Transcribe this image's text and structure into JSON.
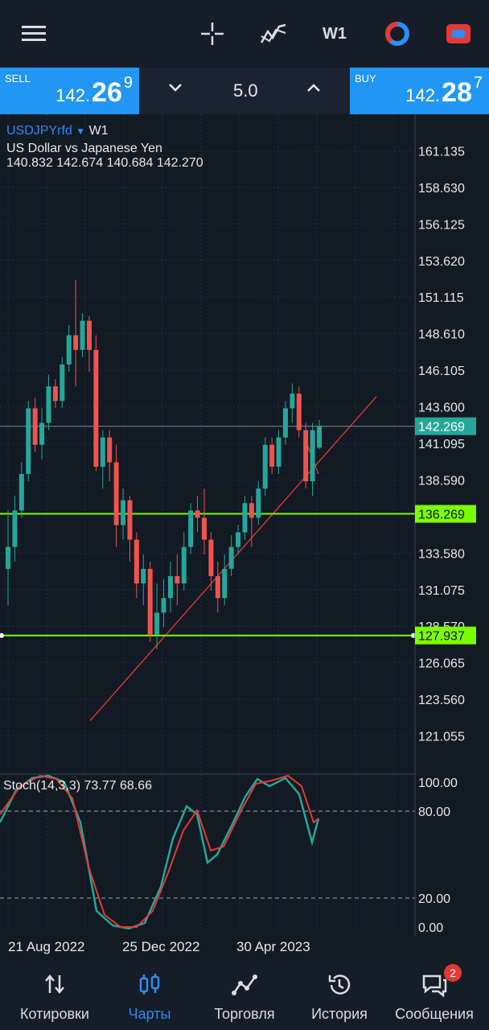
{
  "toolbar": {
    "timeframe": "W1",
    "icons": [
      "menu-icon",
      "crosshair-icon",
      "indicators-icon",
      "timeframe",
      "color-wheel-icon",
      "trade-toggle-icon"
    ]
  },
  "trade": {
    "sell": {
      "label": "SELL",
      "price_main": "142.",
      "price_big": "26",
      "price_sup": "9"
    },
    "buy": {
      "label": "BUY",
      "price_main": "142.",
      "price_big": "28",
      "price_sup": "7"
    },
    "volume": "5.0"
  },
  "chart": {
    "symbol": "USDJPYrfd",
    "timeframe": "W1",
    "description": "US Dollar vs Japanese Yen",
    "ohlc": "140.832 142.674 140.684 142.270",
    "price_levels": [
      "161.135",
      "158.630",
      "156.125",
      "153.620",
      "151.115",
      "148.610",
      "146.105",
      "143.600",
      "141.095",
      "138.590",
      "133.580",
      "131.075",
      "128.570",
      "126.065",
      "123.560",
      "121.055"
    ],
    "current_price_tag": "142.269",
    "level_tag_1": "136.269",
    "level_tag_2": "127.937",
    "stoch_label": "Stoch(14,3,3) 73.77 68.66",
    "stoch_levels": [
      "100.00",
      "80.00",
      "20.00",
      "0.00"
    ],
    "dates": [
      "21 Aug 2022",
      "25 Dec 2022",
      "30 Apr 2023"
    ],
    "colors": {
      "bull": "#26a69a",
      "bear": "#ef5350",
      "hline": "#7cfc00",
      "trend": "#e53935"
    }
  },
  "chart_data": {
    "type": "candlestick",
    "ylim": [
      118.55,
      163.64
    ],
    "candles": [
      [
        132.5,
        134.0,
        130.0,
        136.5
      ],
      [
        134.0,
        136.5,
        133.0,
        137.5
      ],
      [
        136.5,
        139.0,
        136.0,
        139.8
      ],
      [
        139.0,
        143.5,
        138.5,
        144.0
      ],
      [
        143.5,
        141.0,
        140.5,
        144.2
      ],
      [
        141.0,
        142.5,
        140.0,
        143.5
      ],
      [
        142.5,
        145.0,
        142.0,
        145.8
      ],
      [
        145.0,
        144.0,
        143.5,
        145.5
      ],
      [
        144.0,
        146.5,
        143.5,
        147.0
      ],
      [
        146.5,
        148.5,
        146.0,
        149.2
      ],
      [
        148.5,
        147.5,
        145.0,
        152.3
      ],
      [
        147.5,
        149.5,
        147.0,
        150.0
      ],
      [
        149.5,
        147.5,
        146.0,
        149.8
      ],
      [
        147.5,
        139.5,
        139.2,
        148.5
      ],
      [
        139.5,
        141.5,
        138.0,
        142.0
      ],
      [
        141.5,
        139.8,
        138.5,
        142.0
      ],
      [
        139.8,
        135.5,
        134.0,
        141.0
      ],
      [
        135.5,
        137.2,
        134.5,
        138.0
      ],
      [
        137.2,
        134.5,
        133.0,
        137.5
      ],
      [
        134.5,
        131.5,
        130.5,
        135.0
      ],
      [
        131.5,
        132.5,
        130.0,
        133.5
      ],
      [
        132.5,
        128.0,
        127.5,
        133.0
      ],
      [
        128.0,
        129.5,
        127.0,
        131.5
      ],
      [
        129.5,
        130.5,
        128.5,
        131.8
      ],
      [
        130.5,
        132.0,
        129.5,
        133.0
      ],
      [
        132.0,
        131.5,
        130.0,
        133.5
      ],
      [
        131.5,
        134.0,
        131.0,
        135.0
      ],
      [
        134.0,
        136.5,
        133.5,
        137.0
      ],
      [
        136.5,
        136.0,
        135.0,
        137.5
      ],
      [
        136.0,
        134.5,
        133.5,
        138.0
      ],
      [
        134.5,
        132.0,
        131.0,
        135.0
      ],
      [
        132.0,
        130.5,
        129.5,
        133.0
      ],
      [
        130.5,
        132.5,
        130.0,
        133.5
      ],
      [
        132.5,
        134.0,
        132.0,
        134.8
      ],
      [
        134.0,
        135.0,
        133.5,
        135.5
      ],
      [
        135.0,
        137.0,
        134.5,
        137.5
      ],
      [
        137.0,
        136.0,
        134.0,
        137.5
      ],
      [
        136.0,
        138.0,
        135.5,
        138.5
      ],
      [
        138.0,
        141.0,
        137.5,
        141.5
      ],
      [
        141.0,
        139.5,
        139.0,
        141.5
      ],
      [
        139.5,
        141.5,
        139.0,
        142.0
      ],
      [
        141.5,
        143.5,
        141.0,
        144.0
      ],
      [
        143.5,
        144.5,
        142.5,
        145.2
      ],
      [
        144.5,
        142.0,
        141.5,
        145.0
      ],
      [
        142.0,
        138.5,
        138.0,
        142.5
      ],
      [
        138.5,
        142.0,
        137.5,
        142.5
      ],
      [
        140.8,
        142.3,
        140.7,
        142.7
      ]
    ],
    "hlines": [
      142.269,
      136.269,
      127.937
    ],
    "stoch": {
      "k": [
        73.77
      ],
      "d": [
        68.66
      ],
      "ylim": [
        0,
        100
      ],
      "levels": [
        20,
        80
      ]
    }
  },
  "nav": [
    {
      "label": "Котировки",
      "icon": "quotes-icon"
    },
    {
      "label": "Чарты",
      "icon": "charts-icon",
      "active": true
    },
    {
      "label": "Торговля",
      "icon": "trade-icon"
    },
    {
      "label": "История",
      "icon": "history-icon"
    },
    {
      "label": "Сообщения",
      "icon": "messages-icon",
      "badge": "2"
    }
  ]
}
